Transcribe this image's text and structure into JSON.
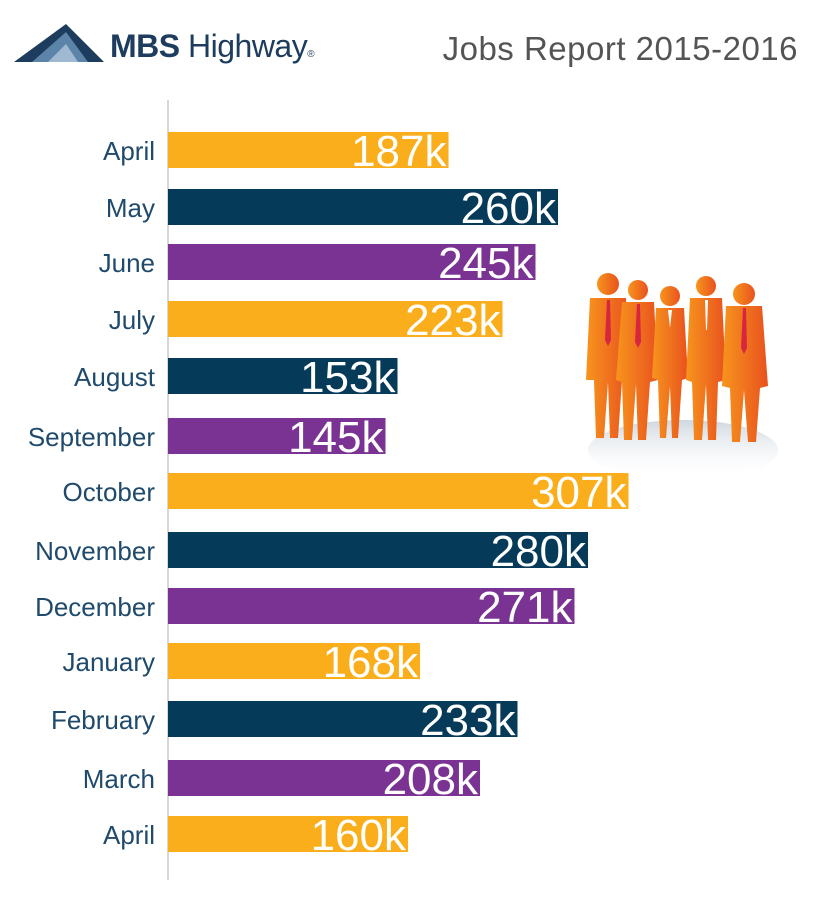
{
  "header": {
    "logo_bold": "MBS",
    "logo_light": "Highway",
    "logo_reg": "®",
    "title": "Jobs Report 2015-2016"
  },
  "colors": {
    "gold": "#FBAE1B",
    "navy": "#053A59",
    "purple": "#7B3393",
    "label": "#1F4A6B"
  },
  "chart_data": {
    "type": "bar",
    "orientation": "horizontal",
    "title": "Jobs Report 2015-2016",
    "xlabel": "",
    "ylabel": "",
    "categories": [
      "April",
      "May",
      "June",
      "July",
      "August",
      "September",
      "October",
      "November",
      "December",
      "January",
      "February",
      "March",
      "April"
    ],
    "values": [
      187,
      260,
      245,
      223,
      153,
      145,
      307,
      280,
      271,
      168,
      233,
      208,
      160
    ],
    "value_labels": [
      "187k",
      "260k",
      "245k",
      "223k",
      "153k",
      "145k",
      "307k",
      "280k",
      "271k",
      "168k",
      "233k",
      "208k",
      "160k"
    ],
    "bar_colors": [
      "gold",
      "navy",
      "purple",
      "gold",
      "navy",
      "purple",
      "gold",
      "navy",
      "purple",
      "gold",
      "navy",
      "purple",
      "gold"
    ],
    "grid": false,
    "legend": "none"
  },
  "illustration": {
    "icon": "business-people-group-icon",
    "colors": [
      "#F7941D",
      "#E8521E"
    ]
  }
}
